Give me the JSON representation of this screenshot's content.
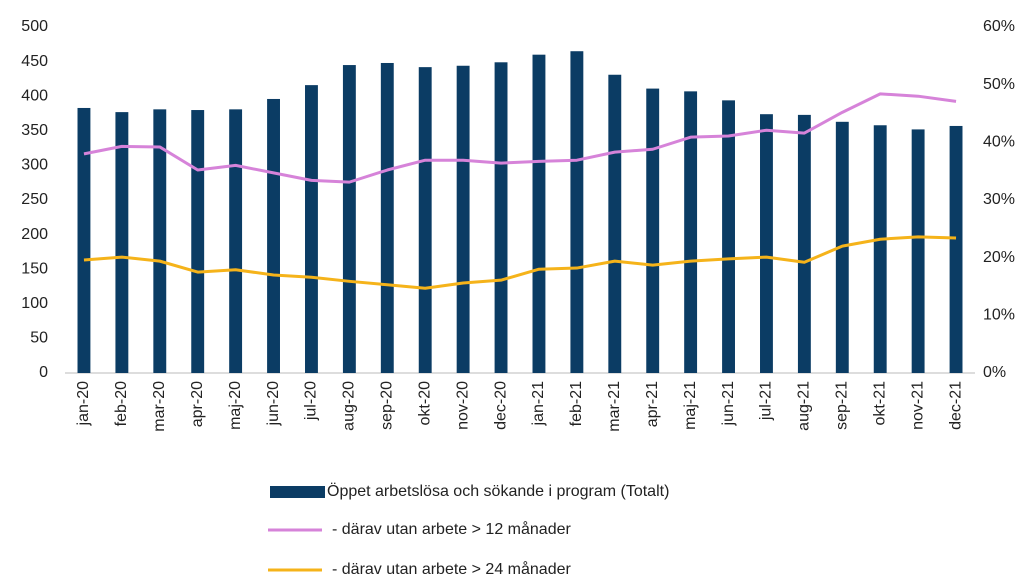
{
  "chart_data": {
    "type": "bar",
    "categories": [
      "jan-20",
      "feb-20",
      "mar-20",
      "apr-20",
      "maj-20",
      "jun-20",
      "jul-20",
      "aug-20",
      "sep-20",
      "okt-20",
      "nov-20",
      "dec-20",
      "jan-21",
      "feb-21",
      "mar-21",
      "apr-21",
      "maj-21",
      "jun-21",
      "jul-21",
      "aug-21",
      "sep-21",
      "okt-21",
      "nov-21",
      "dec-21"
    ],
    "series": [
      {
        "name": "Öppet arbetslösa och sökande i program (Totalt)",
        "type": "bar",
        "color": "#0b3c64",
        "values": [
          383,
          377,
          381,
          380,
          381,
          396,
          416,
          445,
          448,
          442,
          444,
          449,
          460,
          465,
          431,
          411,
          407,
          394,
          374,
          373,
          363,
          358,
          352,
          357
        ]
      },
      {
        "name": "- därav utan arbete > 12 månader",
        "type": "line",
        "axis": "y2",
        "color": "#d683d9",
        "values": [
          38.0,
          39.3,
          39.2,
          35.2,
          36.0,
          34.7,
          33.4,
          33.1,
          35.2,
          36.9,
          36.9,
          36.4,
          36.7,
          36.9,
          38.3,
          38.8,
          40.9,
          41.1,
          42.1,
          41.6,
          45.2,
          48.4,
          48.0,
          47.1
        ]
      },
      {
        "name": "- därav utan arbete > 24 månader",
        "type": "line",
        "axis": "y2",
        "color": "#f5b31a",
        "values": [
          19.6,
          20.1,
          19.4,
          17.5,
          17.9,
          17.0,
          16.6,
          15.9,
          15.3,
          14.7,
          15.6,
          16.1,
          18.0,
          18.2,
          19.4,
          18.7,
          19.4,
          19.8,
          20.1,
          19.2,
          22.0,
          23.2,
          23.6,
          23.4
        ]
      }
    ],
    "ylim": [
      0,
      500
    ],
    "yticks": [
      0,
      50,
      100,
      150,
      200,
      250,
      300,
      350,
      400,
      450,
      500
    ],
    "y2lim": [
      0,
      60
    ],
    "y2ticks": [
      {
        "value": 0,
        "label": "0%"
      },
      {
        "value": 10,
        "label": "10%"
      },
      {
        "value": 20,
        "label": "20%"
      },
      {
        "value": 30,
        "label": "30%"
      },
      {
        "value": 40,
        "label": "40%"
      },
      {
        "value": 50,
        "label": "50%"
      },
      {
        "value": 60,
        "label": "60%"
      }
    ],
    "legend": "bottom"
  }
}
